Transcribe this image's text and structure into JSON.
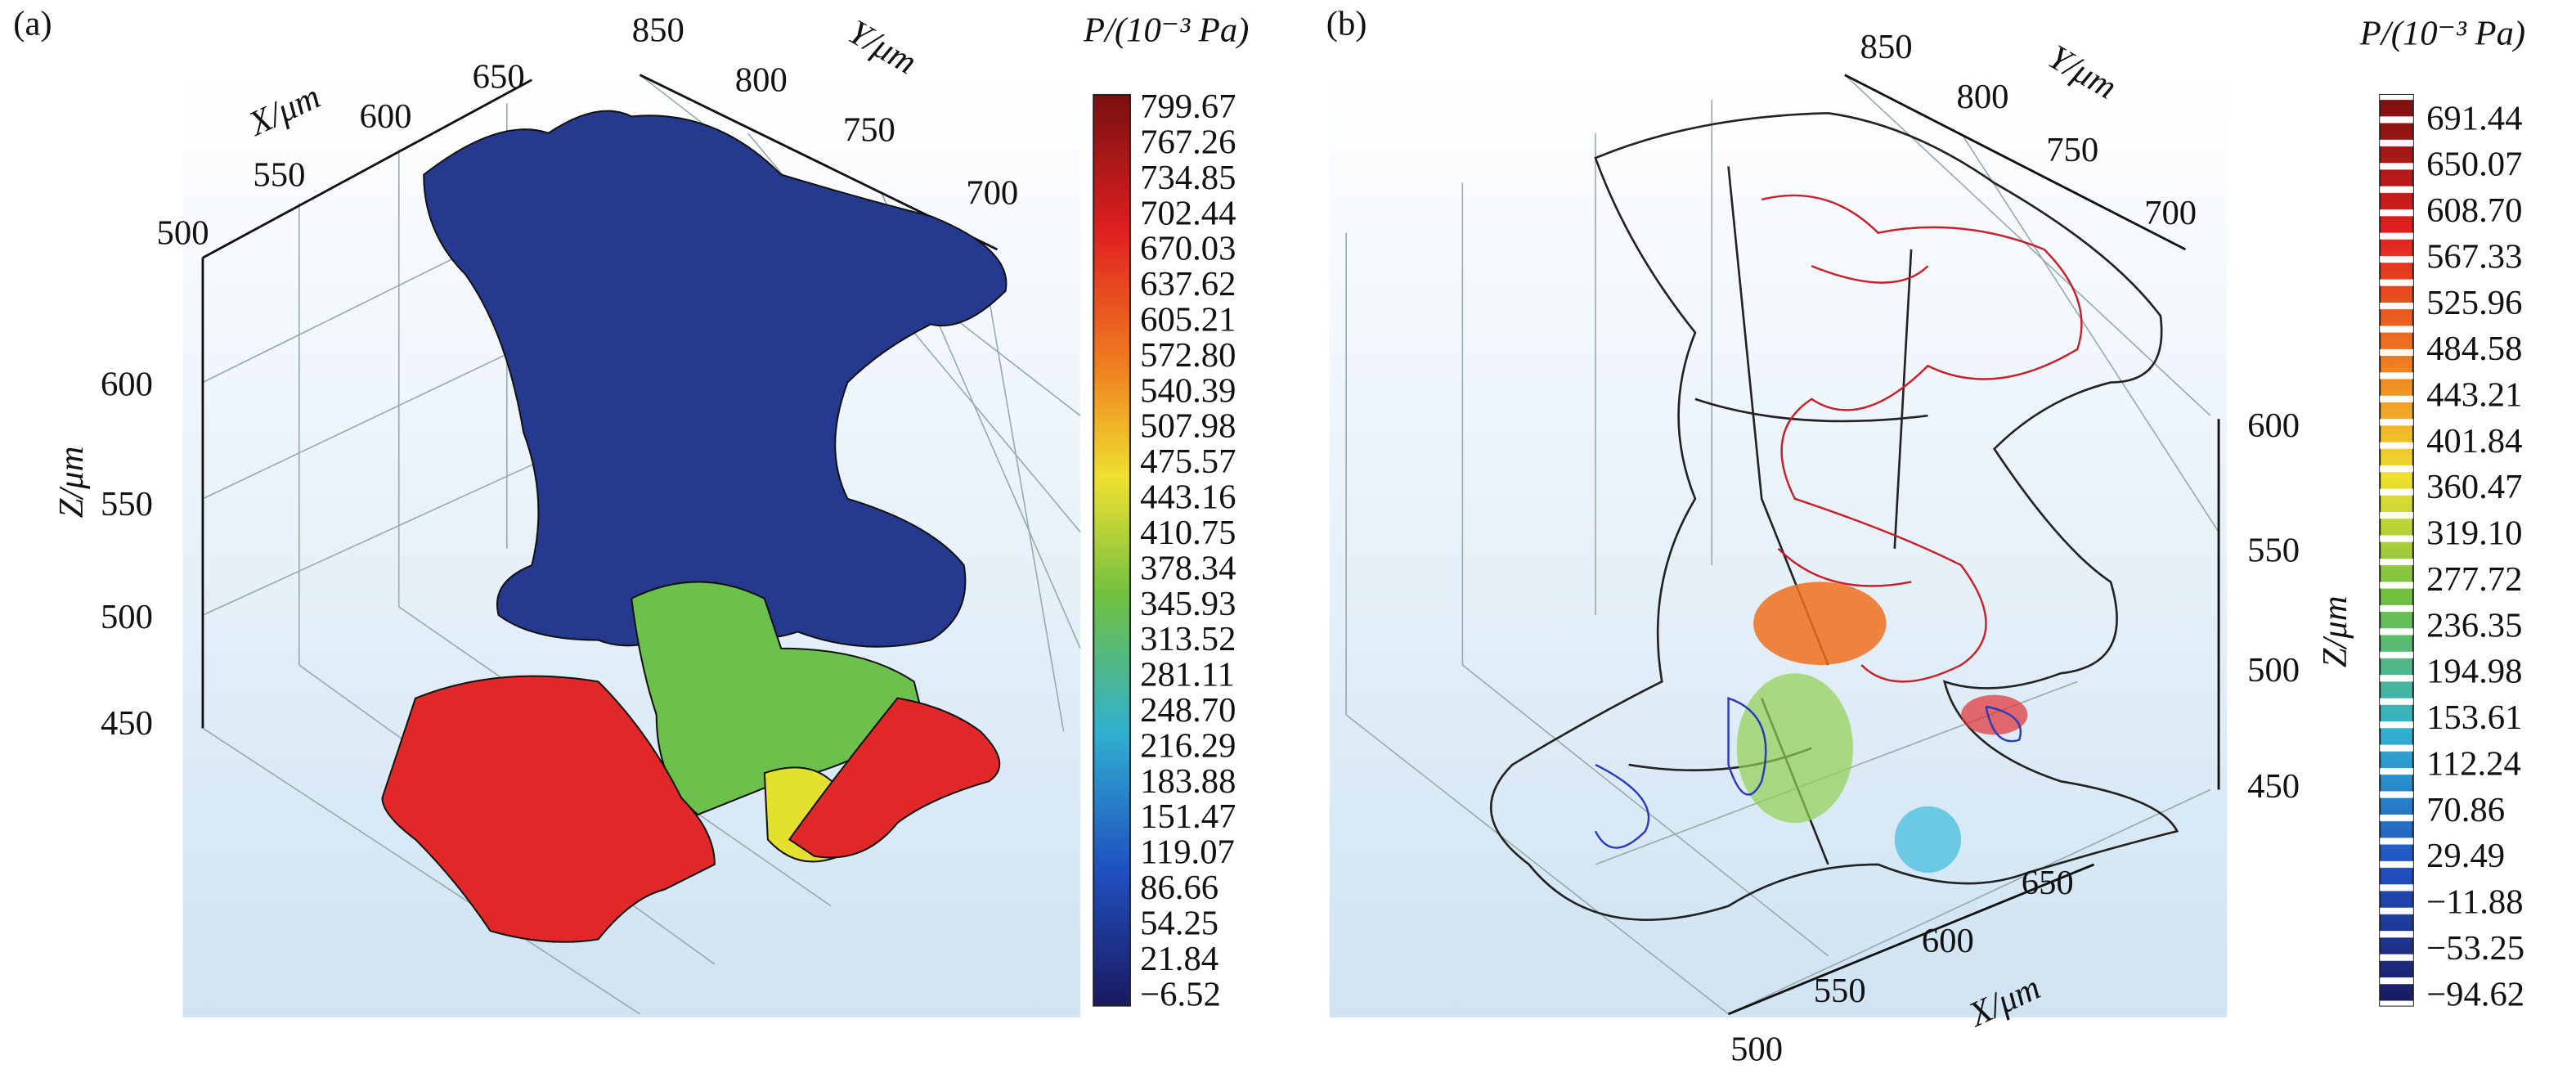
{
  "panels": [
    {
      "label": "(a)",
      "x_axis": {
        "label": "X/μm",
        "ticks": [
          "500",
          "550",
          "600",
          "650"
        ]
      },
      "y_axis": {
        "label": "Y/μm",
        "ticks": [
          "850",
          "800",
          "750",
          "700"
        ]
      },
      "z_axis": {
        "label": "Z/μm",
        "ticks": [
          "600",
          "550",
          "500",
          "450"
        ]
      },
      "colorbar": {
        "title": "P/(10⁻³ Pa)",
        "labels": [
          "799.67",
          "767.26",
          "734.85",
          "702.44",
          "670.03",
          "637.62",
          "605.21",
          "572.80",
          "540.39",
          "507.98",
          "475.57",
          "443.16",
          "410.75",
          "378.34",
          "345.93",
          "313.52",
          "281.11",
          "248.70",
          "216.29",
          "183.88",
          "151.47",
          "119.07",
          "86.66",
          "54.25",
          "21.84",
          "−6.52"
        ]
      }
    },
    {
      "label": "(b)",
      "x_axis": {
        "label": "X/μm",
        "ticks": [
          "500",
          "550",
          "600",
          "650"
        ]
      },
      "y_axis": {
        "label": "Y/μm",
        "ticks": [
          "850",
          "800",
          "750",
          "700"
        ]
      },
      "z_axis": {
        "label": "Z/μm",
        "ticks": [
          "600",
          "550",
          "500",
          "450"
        ]
      },
      "colorbar": {
        "title": "P/(10⁻³ Pa)",
        "labels": [
          "691.44",
          "650.07",
          "608.70",
          "567.33",
          "525.96",
          "484.58",
          "443.21",
          "401.84",
          "360.47",
          "319.10",
          "277.72",
          "236.35",
          "194.98",
          "153.61",
          "112.24",
          "70.86",
          "29.49",
          "−11.88",
          "−53.25",
          "−94.62"
        ]
      }
    }
  ]
}
